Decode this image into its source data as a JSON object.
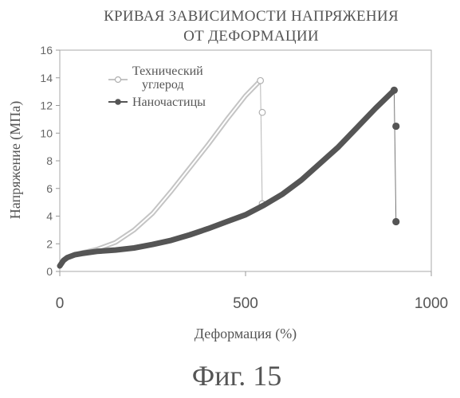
{
  "figure_caption": "Фиг. 15",
  "chart_data": {
    "type": "line",
    "title": "КРИВАЯ ЗАВИСИМОСТИ НАПРЯЖЕНИЯ ОТ ДЕФОРМАЦИИ",
    "title_lines": [
      "КРИВАЯ ЗАВИСИМОСТИ НАПРЯЖЕНИЯ",
      "ОТ ДЕФОРМАЦИИ"
    ],
    "xlabel": "Деформация (%)",
    "ylabel": "Напряжение (МПа)",
    "xlim": [
      0,
      1000
    ],
    "ylim": [
      0,
      16
    ],
    "x_ticks": [
      0,
      500,
      1000
    ],
    "y_ticks": [
      0,
      2,
      4,
      6,
      8,
      10,
      12,
      14,
      16
    ],
    "grid": false,
    "legend_position": "top-left",
    "series": [
      {
        "name": "Технический углерод",
        "name_lines": [
          "Технический",
          "углерод"
        ],
        "color": "#c4c4c4",
        "marker": "open-circle",
        "x": [
          0,
          10,
          20,
          40,
          60,
          100,
          150,
          200,
          250,
          300,
          350,
          400,
          450,
          500,
          540
        ],
        "y": [
          0.4,
          0.8,
          1.0,
          1.2,
          1.35,
          1.6,
          2.1,
          3.0,
          4.2,
          5.8,
          7.5,
          9.2,
          11.0,
          12.7,
          13.8
        ],
        "break_points": [
          {
            "x": 545,
            "y": 11.5
          },
          {
            "x": 545,
            "y": 4.9
          }
        ]
      },
      {
        "name": "Наночастицы",
        "name_lines": [
          "Наночастицы"
        ],
        "color": "#555555",
        "marker": "filled-circle",
        "x": [
          0,
          10,
          20,
          40,
          60,
          100,
          150,
          200,
          250,
          300,
          350,
          400,
          450,
          500,
          550,
          600,
          650,
          700,
          750,
          800,
          850,
          900
        ],
        "y": [
          0.4,
          0.8,
          1.0,
          1.2,
          1.3,
          1.45,
          1.55,
          1.7,
          1.95,
          2.25,
          2.65,
          3.1,
          3.6,
          4.1,
          4.8,
          5.6,
          6.6,
          7.8,
          9.0,
          10.4,
          11.8,
          13.1
        ],
        "break_points": [
          {
            "x": 905,
            "y": 10.5
          },
          {
            "x": 905,
            "y": 3.6
          }
        ]
      }
    ]
  }
}
